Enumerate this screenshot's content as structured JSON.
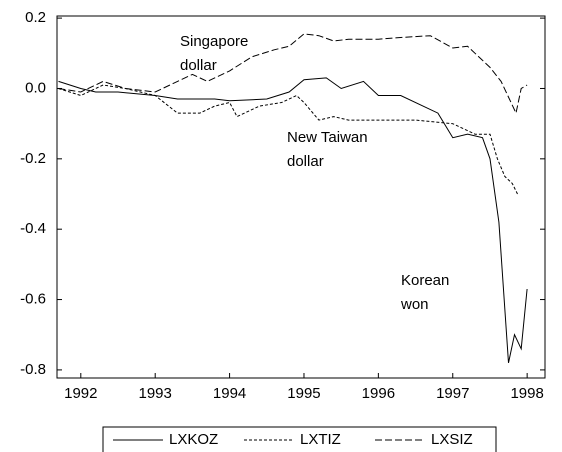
{
  "chart_data": {
    "type": "line",
    "xlim": [
      1991.68,
      1998.24
    ],
    "xticks": [
      1992,
      1993,
      1994,
      1995,
      1996,
      1997,
      1998
    ],
    "ylim": [
      -0.823,
      0.206
    ],
    "yticks": [
      0.2,
      {
        "value": 0,
        "label": "0.0"
      },
      -0.2,
      -0.4,
      -0.6,
      -0.8
    ],
    "legend": "bottom",
    "annotations": [
      {
        "lines": [
          "Singapore",
          "dollar"
        ]
      },
      {
        "lines": [
          "New Taiwan",
          "dollar"
        ]
      },
      {
        "lines": [
          "Korean",
          "won"
        ]
      }
    ],
    "series": [
      {
        "name": "LXKOZ",
        "color": "#000000",
        "line_style": "solid",
        "x": [
          1991.7,
          1992.0,
          1992.2,
          1992.5,
          1993.0,
          1993.3,
          1993.8,
          1994.0,
          1994.5,
          1994.8,
          1995.0,
          1995.3,
          1995.5,
          1995.8,
          1996.0,
          1996.3,
          1996.6,
          1996.8,
          1997.0,
          1997.2,
          1997.4,
          1997.5,
          1997.62,
          1997.75,
          1997.83,
          1997.92,
          1998.0
        ],
        "values": [
          0.02,
          0.0,
          -0.01,
          -0.01,
          -0.02,
          -0.03,
          -0.03,
          -0.035,
          -0.03,
          -0.01,
          0.025,
          0.03,
          0.0,
          0.02,
          -0.02,
          -0.02,
          -0.05,
          -0.07,
          -0.14,
          -0.13,
          -0.14,
          -0.2,
          -0.38,
          -0.78,
          -0.7,
          -0.74,
          -0.57
        ]
      },
      {
        "name": "LXTIZ",
        "color": "#000000",
        "line_style": "dotted",
        "x": [
          1991.7,
          1992.0,
          1992.3,
          1992.6,
          1993.0,
          1993.3,
          1993.6,
          1993.8,
          1994.0,
          1994.1,
          1994.4,
          1994.7,
          1994.9,
          1995.0,
          1995.2,
          1995.4,
          1995.6,
          1996.0,
          1996.5,
          1997.0,
          1997.3,
          1997.5,
          1997.6,
          1997.7,
          1997.8,
          1997.87
        ],
        "values": [
          0.0,
          -0.02,
          0.01,
          0.0,
          -0.02,
          -0.07,
          -0.07,
          -0.05,
          -0.04,
          -0.08,
          -0.05,
          -0.04,
          -0.02,
          -0.04,
          -0.09,
          -0.08,
          -0.09,
          -0.09,
          -0.09,
          -0.1,
          -0.13,
          -0.13,
          -0.2,
          -0.25,
          -0.27,
          -0.3
        ]
      },
      {
        "name": "LXSIZ",
        "color": "#000000",
        "line_style": "dashed",
        "x": [
          1991.7,
          1992.0,
          1992.3,
          1992.6,
          1993.0,
          1993.3,
          1993.5,
          1993.7,
          1994.0,
          1994.3,
          1994.6,
          1994.8,
          1995.0,
          1995.2,
          1995.4,
          1995.6,
          1996.0,
          1996.3,
          1996.7,
          1997.0,
          1997.2,
          1997.5,
          1997.65,
          1997.85,
          1997.92,
          1998.0
        ],
        "values": [
          0.0,
          -0.01,
          0.02,
          0.0,
          -0.01,
          0.02,
          0.04,
          0.02,
          0.05,
          0.09,
          0.11,
          0.12,
          0.155,
          0.15,
          0.135,
          0.14,
          0.14,
          0.145,
          0.15,
          0.115,
          0.12,
          0.06,
          0.02,
          -0.07,
          0.0,
          0.01
        ]
      }
    ]
  }
}
